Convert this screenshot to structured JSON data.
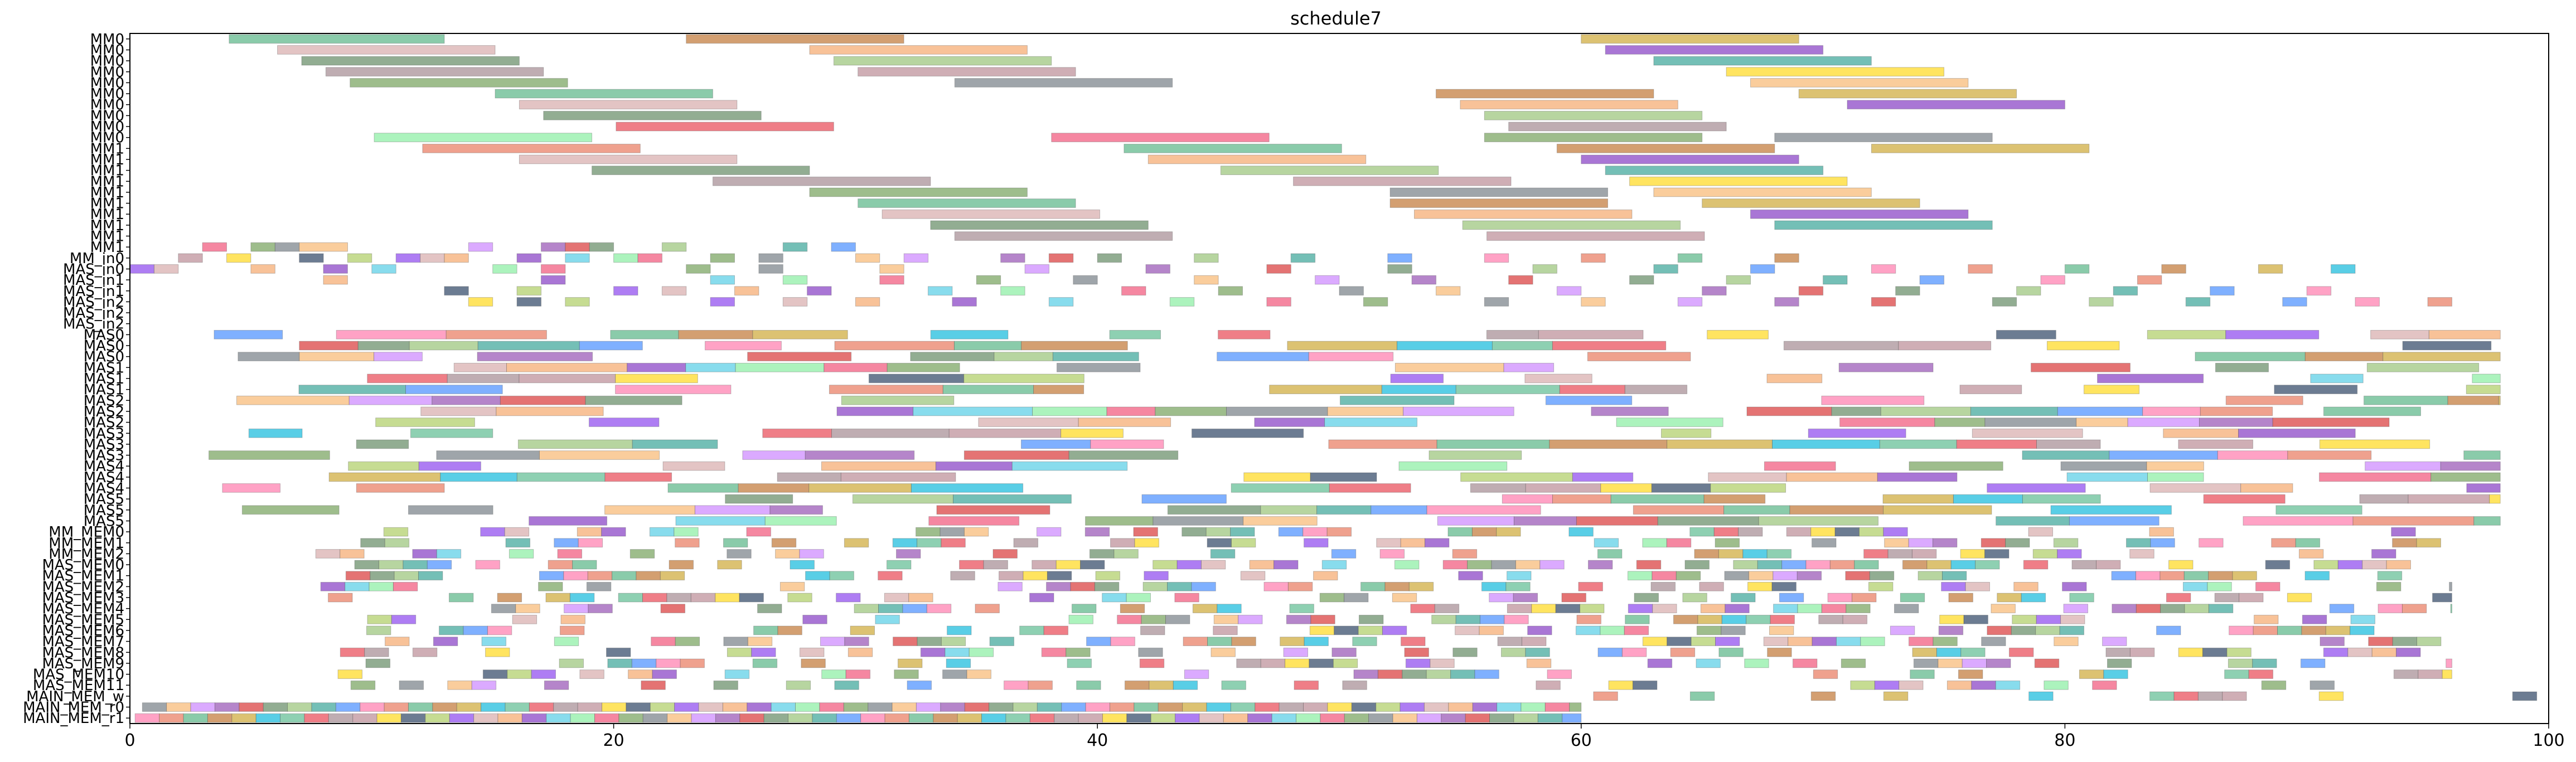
{
  "chart_data": {
    "type": "gantt",
    "title": "schedule7",
    "xlabel": "",
    "ylabel": "",
    "xlim": [
      0,
      100
    ],
    "x_ticks": [
      0,
      20,
      40,
      60,
      80,
      100
    ],
    "grid": false,
    "legend": "none",
    "rows": [
      "MM0",
      "MM0",
      "MM0",
      "MM0",
      "MM0",
      "MM0",
      "MM0",
      "MM0",
      "MM0",
      "MM0",
      "MM1",
      "MM1",
      "MM1",
      "MM1",
      "MM1",
      "MM1",
      "MM1",
      "MM1",
      "MM1",
      "MM1",
      "MM_in0",
      "MAS_in0",
      "MAS_in1",
      "MAS_in1",
      "MAS_in2",
      "MAS_in2",
      "MAS_in2",
      "MAS0",
      "MAS0",
      "MAS0",
      "MAS1",
      "MAS1",
      "MAS1",
      "MAS2",
      "MAS2",
      "MAS2",
      "MAS3",
      "MAS3",
      "MAS3",
      "MAS4",
      "MAS4",
      "MAS4",
      "MAS5",
      "MAS5",
      "MAS5",
      "MM_MEM0",
      "MM_MEM1",
      "MM_MEM2",
      "MAS_MEM0",
      "MAS_MEM1",
      "MAS_MEM2",
      "MAS_MEM3",
      "MAS_MEM4",
      "MAS_MEM5",
      "MAS_MEM6",
      "MAS_MEM7",
      "MAS_MEM8",
      "MAS_MEM9",
      "MAS_MEM10",
      "MAS_MEM11",
      "MAIN_MEM_w",
      "MAIN_MEM_r0",
      "MAIN_MEM_r1"
    ],
    "palette": [
      "#4caf7d",
      "#f4a261",
      "#2a9d8f",
      "#1d3557",
      "#8e44ad",
      "#e63946",
      "#6a994e",
      "#bc6c25",
      "#7b2cbf",
      "#3a86ff",
      "#a7c957",
      "#d62828",
      "#9d8189",
      "#6c757d",
      "#c9a227",
      "#48cae4",
      "#ff70a6",
      "#8338ec",
      "#588157",
      "#b5838d",
      "#f7b267",
      "#00b4d8",
      "#80ed99",
      "#e76f51",
      "#d4a5a5",
      "#90be6d",
      "#ffd60a",
      "#c77dff",
      "#52b788",
      "#ef476f"
    ],
    "tasks": [
      {
        "row": 0,
        "start": 4.1,
        "end": 13.0
      },
      {
        "row": 0,
        "start": 23.0,
        "end": 32.0
      },
      {
        "row": 0,
        "start": 60.0,
        "end": 69.0
      },
      {
        "row": 1,
        "start": 6.1,
        "end": 15.1
      },
      {
        "row": 1,
        "start": 28.1,
        "end": 37.1
      },
      {
        "row": 1,
        "start": 61.0,
        "end": 70.0
      },
      {
        "row": 2,
        "start": 7.1,
        "end": 16.1
      },
      {
        "row": 2,
        "start": 29.1,
        "end": 38.1
      },
      {
        "row": 2,
        "start": 63.0,
        "end": 72.0
      },
      {
        "row": 3,
        "start": 8.1,
        "end": 17.1
      },
      {
        "row": 3,
        "start": 30.1,
        "end": 39.1
      },
      {
        "row": 3,
        "start": 66.0,
        "end": 75.0
      },
      {
        "row": 4,
        "start": 9.1,
        "end": 18.1
      },
      {
        "row": 4,
        "start": 34.1,
        "end": 43.1
      },
      {
        "row": 4,
        "start": 67.0,
        "end": 76.0
      },
      {
        "row": 5,
        "start": 15.1,
        "end": 24.1
      },
      {
        "row": 5,
        "start": 54.0,
        "end": 63.0
      },
      {
        "row": 5,
        "start": 69.0,
        "end": 78.0
      },
      {
        "row": 6,
        "start": 16.1,
        "end": 25.1
      },
      {
        "row": 6,
        "start": 55.0,
        "end": 64.0
      },
      {
        "row": 6,
        "start": 71.0,
        "end": 80.0
      },
      {
        "row": 7,
        "start": 17.1,
        "end": 26.1
      },
      {
        "row": 7,
        "start": 56.0,
        "end": 65.0
      },
      {
        "row": 8,
        "start": 20.1,
        "end": 29.1
      },
      {
        "row": 8,
        "start": 57.0,
        "end": 66.0
      },
      {
        "row": 9,
        "start": 10.1,
        "end": 19.1
      },
      {
        "row": 9,
        "start": 38.1,
        "end": 47.1
      },
      {
        "row": 9,
        "start": 56.0,
        "end": 65.0
      },
      {
        "row": 9,
        "start": 68.0,
        "end": 77.0
      },
      {
        "row": 10,
        "start": 12.1,
        "end": 21.1
      },
      {
        "row": 10,
        "start": 41.1,
        "end": 50.1
      },
      {
        "row": 10,
        "start": 59.0,
        "end": 68.0
      },
      {
        "row": 10,
        "start": 72.0,
        "end": 81.0
      },
      {
        "row": 11,
        "start": 16.1,
        "end": 25.1
      },
      {
        "row": 11,
        "start": 42.1,
        "end": 51.1
      },
      {
        "row": 11,
        "start": 60.0,
        "end": 69.0
      },
      {
        "row": 12,
        "start": 19.1,
        "end": 28.1
      },
      {
        "row": 12,
        "start": 45.1,
        "end": 54.1
      },
      {
        "row": 12,
        "start": 61.0,
        "end": 70.0
      },
      {
        "row": 13,
        "start": 24.1,
        "end": 33.1
      },
      {
        "row": 13,
        "start": 48.1,
        "end": 57.1
      },
      {
        "row": 13,
        "start": 62.0,
        "end": 71.0
      },
      {
        "row": 14,
        "start": 28.1,
        "end": 37.1
      },
      {
        "row": 14,
        "start": 52.1,
        "end": 61.1
      },
      {
        "row": 14,
        "start": 63.0,
        "end": 72.0
      },
      {
        "row": 15,
        "start": 30.1,
        "end": 39.1
      },
      {
        "row": 15,
        "start": 52.1,
        "end": 61.1
      },
      {
        "row": 15,
        "start": 65.0,
        "end": 74.0
      },
      {
        "row": 16,
        "start": 31.1,
        "end": 40.1
      },
      {
        "row": 16,
        "start": 53.1,
        "end": 62.1
      },
      {
        "row": 16,
        "start": 67.0,
        "end": 76.0
      },
      {
        "row": 17,
        "start": 33.1,
        "end": 42.1
      },
      {
        "row": 17,
        "start": 55.1,
        "end": 64.1
      },
      {
        "row": 17,
        "start": 68.0,
        "end": 77.0
      },
      {
        "row": 18,
        "start": 34.1,
        "end": 43.1
      },
      {
        "row": 18,
        "start": 56.1,
        "end": 65.1
      },
      {
        "row": 19,
        "start": 3.0,
        "end": 4.0
      },
      {
        "row": 19,
        "start": 5.0,
        "end": 6.0
      },
      {
        "row": 19,
        "start": 6.0,
        "end": 7.0
      },
      {
        "row": 19,
        "start": 7.0,
        "end": 9.0
      },
      {
        "row": 19,
        "start": 14.0,
        "end": 15.0
      },
      {
        "row": 19,
        "start": 17.0,
        "end": 18.0
      },
      {
        "row": 19,
        "start": 18.0,
        "end": 19.0
      },
      {
        "row": 19,
        "start": 19.0,
        "end": 20.0
      },
      {
        "row": 19,
        "start": 22.0,
        "end": 23.0
      },
      {
        "row": 19,
        "start": 27.0,
        "end": 28.0
      },
      {
        "row": 19,
        "start": 29.0,
        "end": 30.0
      },
      {
        "row": 20,
        "start": 2.0,
        "end": 3.0
      },
      {
        "row": 20,
        "start": 4.0,
        "end": 5.0
      },
      {
        "row": 20,
        "start": 7.0,
        "end": 8.0
      },
      {
        "row": 20,
        "start": 9.0,
        "end": 10.0
      },
      {
        "row": 20,
        "start": 11.0,
        "end": 12.0
      },
      {
        "row": 20,
        "start": 12.0,
        "end": 13.0
      },
      {
        "row": 20,
        "start": 13.0,
        "end": 14.0
      },
      {
        "row": 20,
        "start": 16.0,
        "end": 17.0
      },
      {
        "row": 20,
        "start": 18.0,
        "end": 19.0
      },
      {
        "row": 20,
        "start": 20.0,
        "end": 21.0
      },
      {
        "row": 20,
        "start": 21.0,
        "end": 22.0
      },
      {
        "row": 20,
        "start": 24.0,
        "end": 25.0
      },
      {
        "row": 20,
        "start": 26.0,
        "end": 27.0
      },
      {
        "row": 20,
        "start": 30.0,
        "end": 31.0
      },
      {
        "row": 20,
        "start": 32.0,
        "end": 33.0
      },
      {
        "row": 20,
        "start": 36.0,
        "end": 37.0
      },
      {
        "row": 20,
        "start": 38.0,
        "end": 39.0
      },
      {
        "row": 20,
        "start": 40.0,
        "end": 41.0
      },
      {
        "row": 20,
        "start": 44.0,
        "end": 45.0
      },
      {
        "row": 20,
        "start": 48.0,
        "end": 49.0
      },
      {
        "row": 20,
        "start": 52.0,
        "end": 53.0
      },
      {
        "row": 20,
        "start": 56.0,
        "end": 57.0
      },
      {
        "row": 20,
        "start": 60.0,
        "end": 61.0
      },
      {
        "row": 20,
        "start": 64.0,
        "end": 65.0
      },
      {
        "row": 20,
        "start": 68.0,
        "end": 69.0
      },
      {
        "row": 21,
        "start": 0.0,
        "end": 1.0
      },
      {
        "row": 21,
        "start": 1.0,
        "end": 2.0
      },
      {
        "row": 21,
        "start": 5.0,
        "end": 6.0
      },
      {
        "row": 21,
        "start": 8.0,
        "end": 9.0
      },
      {
        "row": 21,
        "start": 10.0,
        "end": 11.0
      },
      {
        "row": 21,
        "start": 15.0,
        "end": 16.0
      },
      {
        "row": 21,
        "start": 17.0,
        "end": 18.0
      },
      {
        "row": 21,
        "start": 23.0,
        "end": 24.0
      },
      {
        "row": 21,
        "start": 26.0,
        "end": 27.0
      },
      {
        "row": 21,
        "start": 31.0,
        "end": 32.0
      },
      {
        "row": 21,
        "start": 37.0,
        "end": 38.0
      },
      {
        "row": 21,
        "start": 42.0,
        "end": 43.0
      },
      {
        "row": 21,
        "start": 47.0,
        "end": 48.0
      },
      {
        "row": 21,
        "start": 52.0,
        "end": 53.0
      },
      {
        "row": 21,
        "start": 58.0,
        "end": 59.0
      },
      {
        "row": 21,
        "start": 63.0,
        "end": 64.0
      },
      {
        "row": 21,
        "start": 67.0,
        "end": 68.0
      },
      {
        "row": 21,
        "start": 72.0,
        "end": 73.0
      },
      {
        "row": 21,
        "start": 76.0,
        "end": 77.0
      },
      {
        "row": 21,
        "start": 80.0,
        "end": 81.0
      },
      {
        "row": 21,
        "start": 84.0,
        "end": 85.0
      },
      {
        "row": 21,
        "start": 88.0,
        "end": 89.0
      },
      {
        "row": 21,
        "start": 91.0,
        "end": 92.0
      },
      {
        "row": 22,
        "start": 8.0,
        "end": 9.0
      },
      {
        "row": 22,
        "start": 17.0,
        "end": 18.0
      },
      {
        "row": 22,
        "start": 24.0,
        "end": 25.0
      },
      {
        "row": 22,
        "start": 27.0,
        "end": 28.0
      },
      {
        "row": 22,
        "start": 31.0,
        "end": 32.0
      },
      {
        "row": 22,
        "start": 35.0,
        "end": 36.0
      },
      {
        "row": 22,
        "start": 39.0,
        "end": 40.0
      },
      {
        "row": 22,
        "start": 44.0,
        "end": 45.0
      },
      {
        "row": 22,
        "start": 49.0,
        "end": 50.0
      },
      {
        "row": 22,
        "start": 53.0,
        "end": 54.0
      },
      {
        "row": 22,
        "start": 57.0,
        "end": 58.0
      },
      {
        "row": 22,
        "start": 62.0,
        "end": 63.0
      },
      {
        "row": 22,
        "start": 66.0,
        "end": 67.0
      },
      {
        "row": 22,
        "start": 70.0,
        "end": 71.0
      },
      {
        "row": 22,
        "start": 74.0,
        "end": 75.0
      },
      {
        "row": 22,
        "start": 79.0,
        "end": 80.0
      },
      {
        "row": 22,
        "start": 83.0,
        "end": 84.0
      },
      {
        "row": 23,
        "start": 13.0,
        "end": 14.0
      },
      {
        "row": 23,
        "start": 16.0,
        "end": 17.0
      },
      {
        "row": 23,
        "start": 20.0,
        "end": 21.0
      },
      {
        "row": 23,
        "start": 22.0,
        "end": 23.0
      },
      {
        "row": 23,
        "start": 25.0,
        "end": 26.0
      },
      {
        "row": 23,
        "start": 28.0,
        "end": 29.0
      },
      {
        "row": 23,
        "start": 33.0,
        "end": 34.0
      },
      {
        "row": 23,
        "start": 36.0,
        "end": 37.0
      },
      {
        "row": 23,
        "start": 41.0,
        "end": 42.0
      },
      {
        "row": 23,
        "start": 45.0,
        "end": 46.0
      },
      {
        "row": 23,
        "start": 50.0,
        "end": 51.0
      },
      {
        "row": 23,
        "start": 54.0,
        "end": 55.0
      },
      {
        "row": 23,
        "start": 59.0,
        "end": 60.0
      },
      {
        "row": 23,
        "start": 65.0,
        "end": 66.0
      },
      {
        "row": 23,
        "start": 69.0,
        "end": 70.0
      },
      {
        "row": 23,
        "start": 73.0,
        "end": 74.0
      },
      {
        "row": 23,
        "start": 78.0,
        "end": 79.0
      },
      {
        "row": 23,
        "start": 82.0,
        "end": 83.0
      },
      {
        "row": 23,
        "start": 86.0,
        "end": 87.0
      },
      {
        "row": 23,
        "start": 90.0,
        "end": 91.0
      },
      {
        "row": 24,
        "start": 14.0,
        "end": 15.0
      },
      {
        "row": 24,
        "start": 16.0,
        "end": 17.0
      },
      {
        "row": 24,
        "start": 18.0,
        "end": 19.0
      },
      {
        "row": 24,
        "start": 24.0,
        "end": 25.0
      },
      {
        "row": 24,
        "start": 27.0,
        "end": 28.0
      },
      {
        "row": 24,
        "start": 30.0,
        "end": 31.0
      },
      {
        "row": 24,
        "start": 34.0,
        "end": 35.0
      },
      {
        "row": 24,
        "start": 38.0,
        "end": 39.0
      },
      {
        "row": 24,
        "start": 43.0,
        "end": 44.0
      },
      {
        "row": 24,
        "start": 47.0,
        "end": 48.0
      },
      {
        "row": 24,
        "start": 51.0,
        "end": 52.0
      },
      {
        "row": 24,
        "start": 56.0,
        "end": 57.0
      },
      {
        "row": 24,
        "start": 60.0,
        "end": 61.0
      },
      {
        "row": 24,
        "start": 64.0,
        "end": 65.0
      },
      {
        "row": 24,
        "start": 68.0,
        "end": 69.0
      },
      {
        "row": 24,
        "start": 72.0,
        "end": 73.0
      },
      {
        "row": 24,
        "start": 77.0,
        "end": 78.0
      },
      {
        "row": 24,
        "start": 81.0,
        "end": 82.0
      },
      {
        "row": 24,
        "start": 85.0,
        "end": 86.0
      },
      {
        "row": 24,
        "start": 89.0,
        "end": 90.0
      },
      {
        "row": 24,
        "start": 92.0,
        "end": 93.0
      },
      {
        "row": 24,
        "start": 95.0,
        "end": 96.0
      }
    ],
    "bar_groups": [
      {
        "row_from": 27,
        "row_to": 44,
        "x_from": 3.0,
        "x_to": 98.0,
        "min_len": 2.0,
        "max_len": 5.0,
        "density": 0.55,
        "seed": 11
      },
      {
        "row_from": 45,
        "row_to": 59,
        "x_from": 7.0,
        "x_to": 96.0,
        "min_len": 1.0,
        "max_len": 1.0,
        "density": 0.45,
        "seed": 29
      },
      {
        "row_from": 60,
        "row_to": 60,
        "x_from": 60.0,
        "x_to": 100.0,
        "min_len": 1.0,
        "max_len": 1.0,
        "density": 0.3,
        "seed": 47
      },
      {
        "row_from": 61,
        "row_to": 62,
        "x_from": 0.0,
        "x_to": 60.0,
        "min_len": 1.0,
        "max_len": 1.0,
        "density": 1.0,
        "seed": 53
      }
    ]
  }
}
